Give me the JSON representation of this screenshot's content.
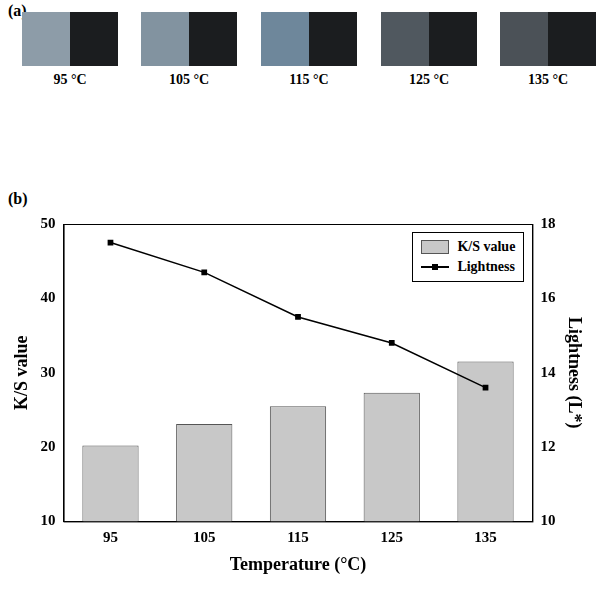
{
  "panel_a": {
    "panel_label": "(a)",
    "samples": [
      "95 °C",
      "105 °C",
      "115 °C",
      "125 °C",
      "135 °C"
    ]
  },
  "chart_data": {
    "type": "bar",
    "panel_label": "(b)",
    "x_label": "Temperature (°C)",
    "y_label": "K/S value",
    "y2_label": "Lightness (L*)",
    "categories": [
      "95",
      "105",
      "115",
      "125",
      "135"
    ],
    "series": [
      {
        "name": "K/S value",
        "type": "bar",
        "color": "#c8c8c8",
        "values": [
          20.2,
          23.1,
          25.5,
          27.3,
          31.5
        ]
      },
      {
        "name": "Lightness",
        "type": "line",
        "color": "#000000",
        "marker": "square",
        "axis": "y2",
        "values": [
          17.5,
          16.7,
          15.5,
          14.8,
          13.6
        ]
      }
    ],
    "ylim": [
      10,
      50
    ],
    "yticks": [
      10,
      20,
      30,
      40,
      50
    ],
    "y2lim": [
      10,
      18
    ],
    "y2ticks": [
      10,
      12,
      14,
      16,
      18
    ],
    "grid": false,
    "legend": "top-right"
  }
}
